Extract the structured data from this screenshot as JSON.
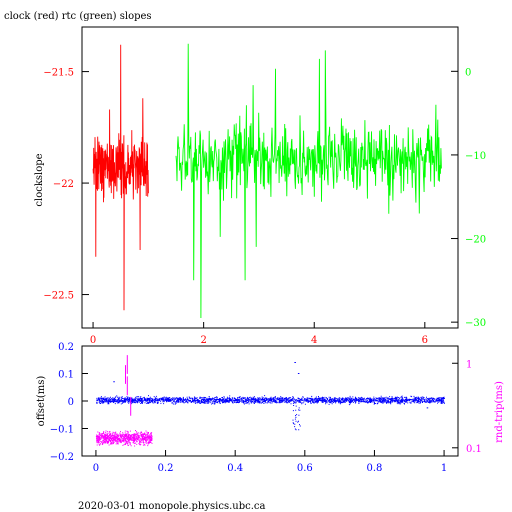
{
  "title": "clock (red) rtc (green) slopes",
  "footer": "2020-03-01 monopole.physics.ubc.ca",
  "colors": {
    "clock": "#ff0000",
    "rtc": "#00ff00",
    "offset": "#0000ff",
    "roundtrip": "#ff00ff",
    "axis": "#000000"
  },
  "chart_data": [
    {
      "type": "line",
      "title": "clock (red) rtc (green) slopes",
      "ylabel": "clockslope",
      "xlim": [
        -0.2,
        6.6
      ],
      "ylim": [
        -22.65,
        -21.3
      ],
      "xticks": [
        0,
        2,
        4,
        6
      ],
      "yticks": [
        -21.5,
        -22,
        -22.5
      ],
      "y2lim": [
        -30.7,
        5.3
      ],
      "y2ticks": [
        0,
        -10,
        -20,
        -30
      ],
      "series": [
        {
          "name": "clock",
          "axis": "left",
          "x_range": [
            0,
            1.0
          ],
          "baseline": -21.93,
          "spread": 0.12,
          "spikes": [
            [
              0.5,
              -21.38
            ],
            [
              0.56,
              -22.57
            ],
            [
              0.05,
              -22.33
            ],
            [
              0.9,
              -21.62
            ],
            [
              0.3,
              -21.67
            ],
            [
              0.85,
              -22.3
            ]
          ]
        },
        {
          "name": "rtc",
          "axis": "right",
          "x_range": [
            1.5,
            6.3
          ],
          "baseline": -10.5,
          "spread": 3.5,
          "spikes": [
            [
              1.72,
              3.3
            ],
            [
              1.95,
              -29.5
            ],
            [
              1.82,
              -25
            ],
            [
              2.75,
              -25
            ],
            [
              2.95,
              -21
            ],
            [
              3.3,
              0.3
            ],
            [
              4.2,
              2.5
            ],
            [
              5.9,
              -17
            ],
            [
              6.2,
              -4
            ],
            [
              2.3,
              -19.8
            ],
            [
              3.65,
              -13
            ]
          ]
        }
      ]
    },
    {
      "type": "scatter",
      "ylabel": "offset(ms)",
      "y2label": "rnd-trip(ms)",
      "xlim": [
        -0.04,
        1.04
      ],
      "ylim": [
        -0.2,
        0.2
      ],
      "xticks": [
        0,
        0.2,
        0.4,
        0.6,
        0.8,
        1
      ],
      "yticks": [
        0.2,
        0.1,
        0,
        -0.1,
        -0.2
      ],
      "y2_scale": "log",
      "y2lim": [
        0.08,
        1.6
      ],
      "y2ticks": [
        1,
        0.1
      ],
      "series": [
        {
          "name": "offset",
          "axis": "left",
          "x_range": [
            0,
            1.0
          ],
          "baseline": 0.003,
          "spread": 0.01,
          "dip": {
            "x": 0.575,
            "y_min": -0.11
          },
          "spikes": [
            [
              0.57,
              0.14
            ],
            [
              0.58,
              0.1
            ],
            [
              0.05,
              0.07
            ],
            [
              0.95,
              -0.025
            ]
          ]
        },
        {
          "name": "roundtrip",
          "axis": "right",
          "x_range": [
            0,
            0.16
          ],
          "baseline": 0.13,
          "spikes": [
            [
              0.09,
              1.25
            ],
            [
              0.09,
              0.7
            ],
            [
              0.1,
              0.4
            ],
            [
              0.085,
              0.95
            ]
          ]
        }
      ]
    }
  ]
}
